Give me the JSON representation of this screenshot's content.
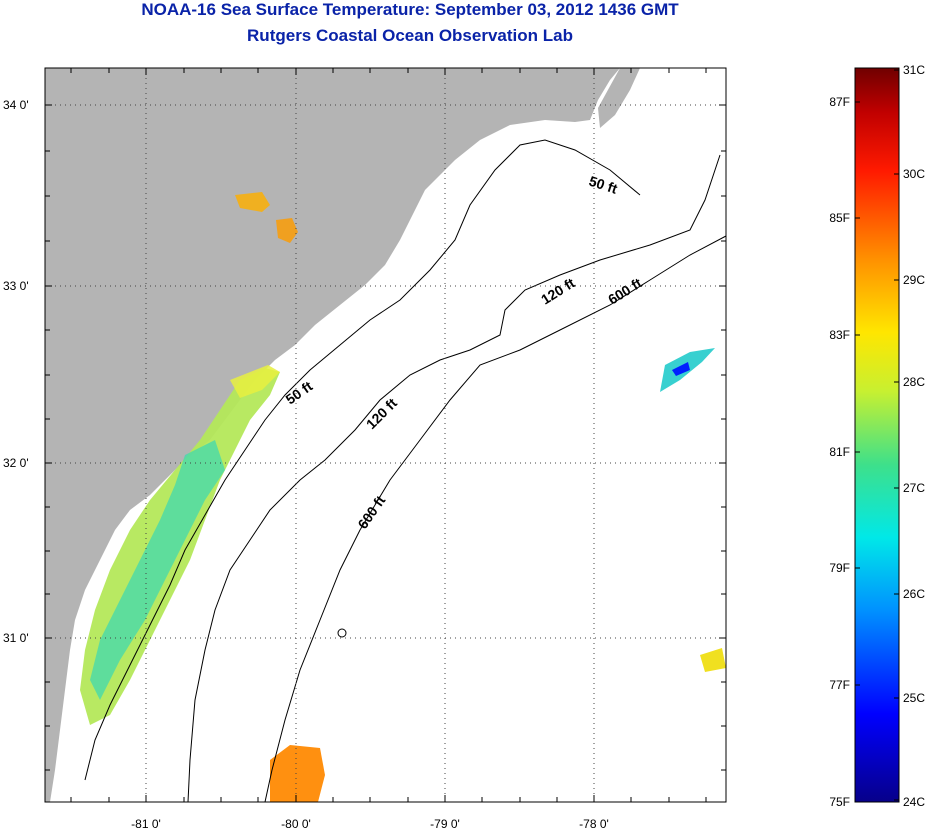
{
  "title": "NOAA-16 Sea Surface Temperature:  September 03, 2012 1436 GMT",
  "subtitle": "Rutgers Coastal Ocean Observation Lab",
  "map": {
    "longitude_labels": [
      "-81 0'",
      "-80 0'",
      "-79 0'",
      "-78 0'"
    ],
    "latitude_labels": [
      "34 0'",
      "33 0'",
      "32 0'",
      "31 0'"
    ],
    "contour_labels": [
      "50 ft",
      "120 ft",
      "600 ft",
      "50 ft",
      "120 ft",
      "600 ft"
    ]
  },
  "colorbar": {
    "celsius_labels": [
      "31C",
      "30C",
      "29C",
      "28C",
      "27C",
      "26C",
      "25C",
      "24C"
    ],
    "fahrenheit_labels": [
      "87F",
      "85F",
      "83F",
      "81F",
      "79F",
      "77F",
      "75F"
    ],
    "colors": [
      "#07008a",
      "#0000ff",
      "#0090ff",
      "#00e8e8",
      "#3ee08a",
      "#c8f030",
      "#ffe600",
      "#ff9000",
      "#ff1a00",
      "#c00000",
      "#700000"
    ]
  },
  "land_color": "#b4b4b4"
}
